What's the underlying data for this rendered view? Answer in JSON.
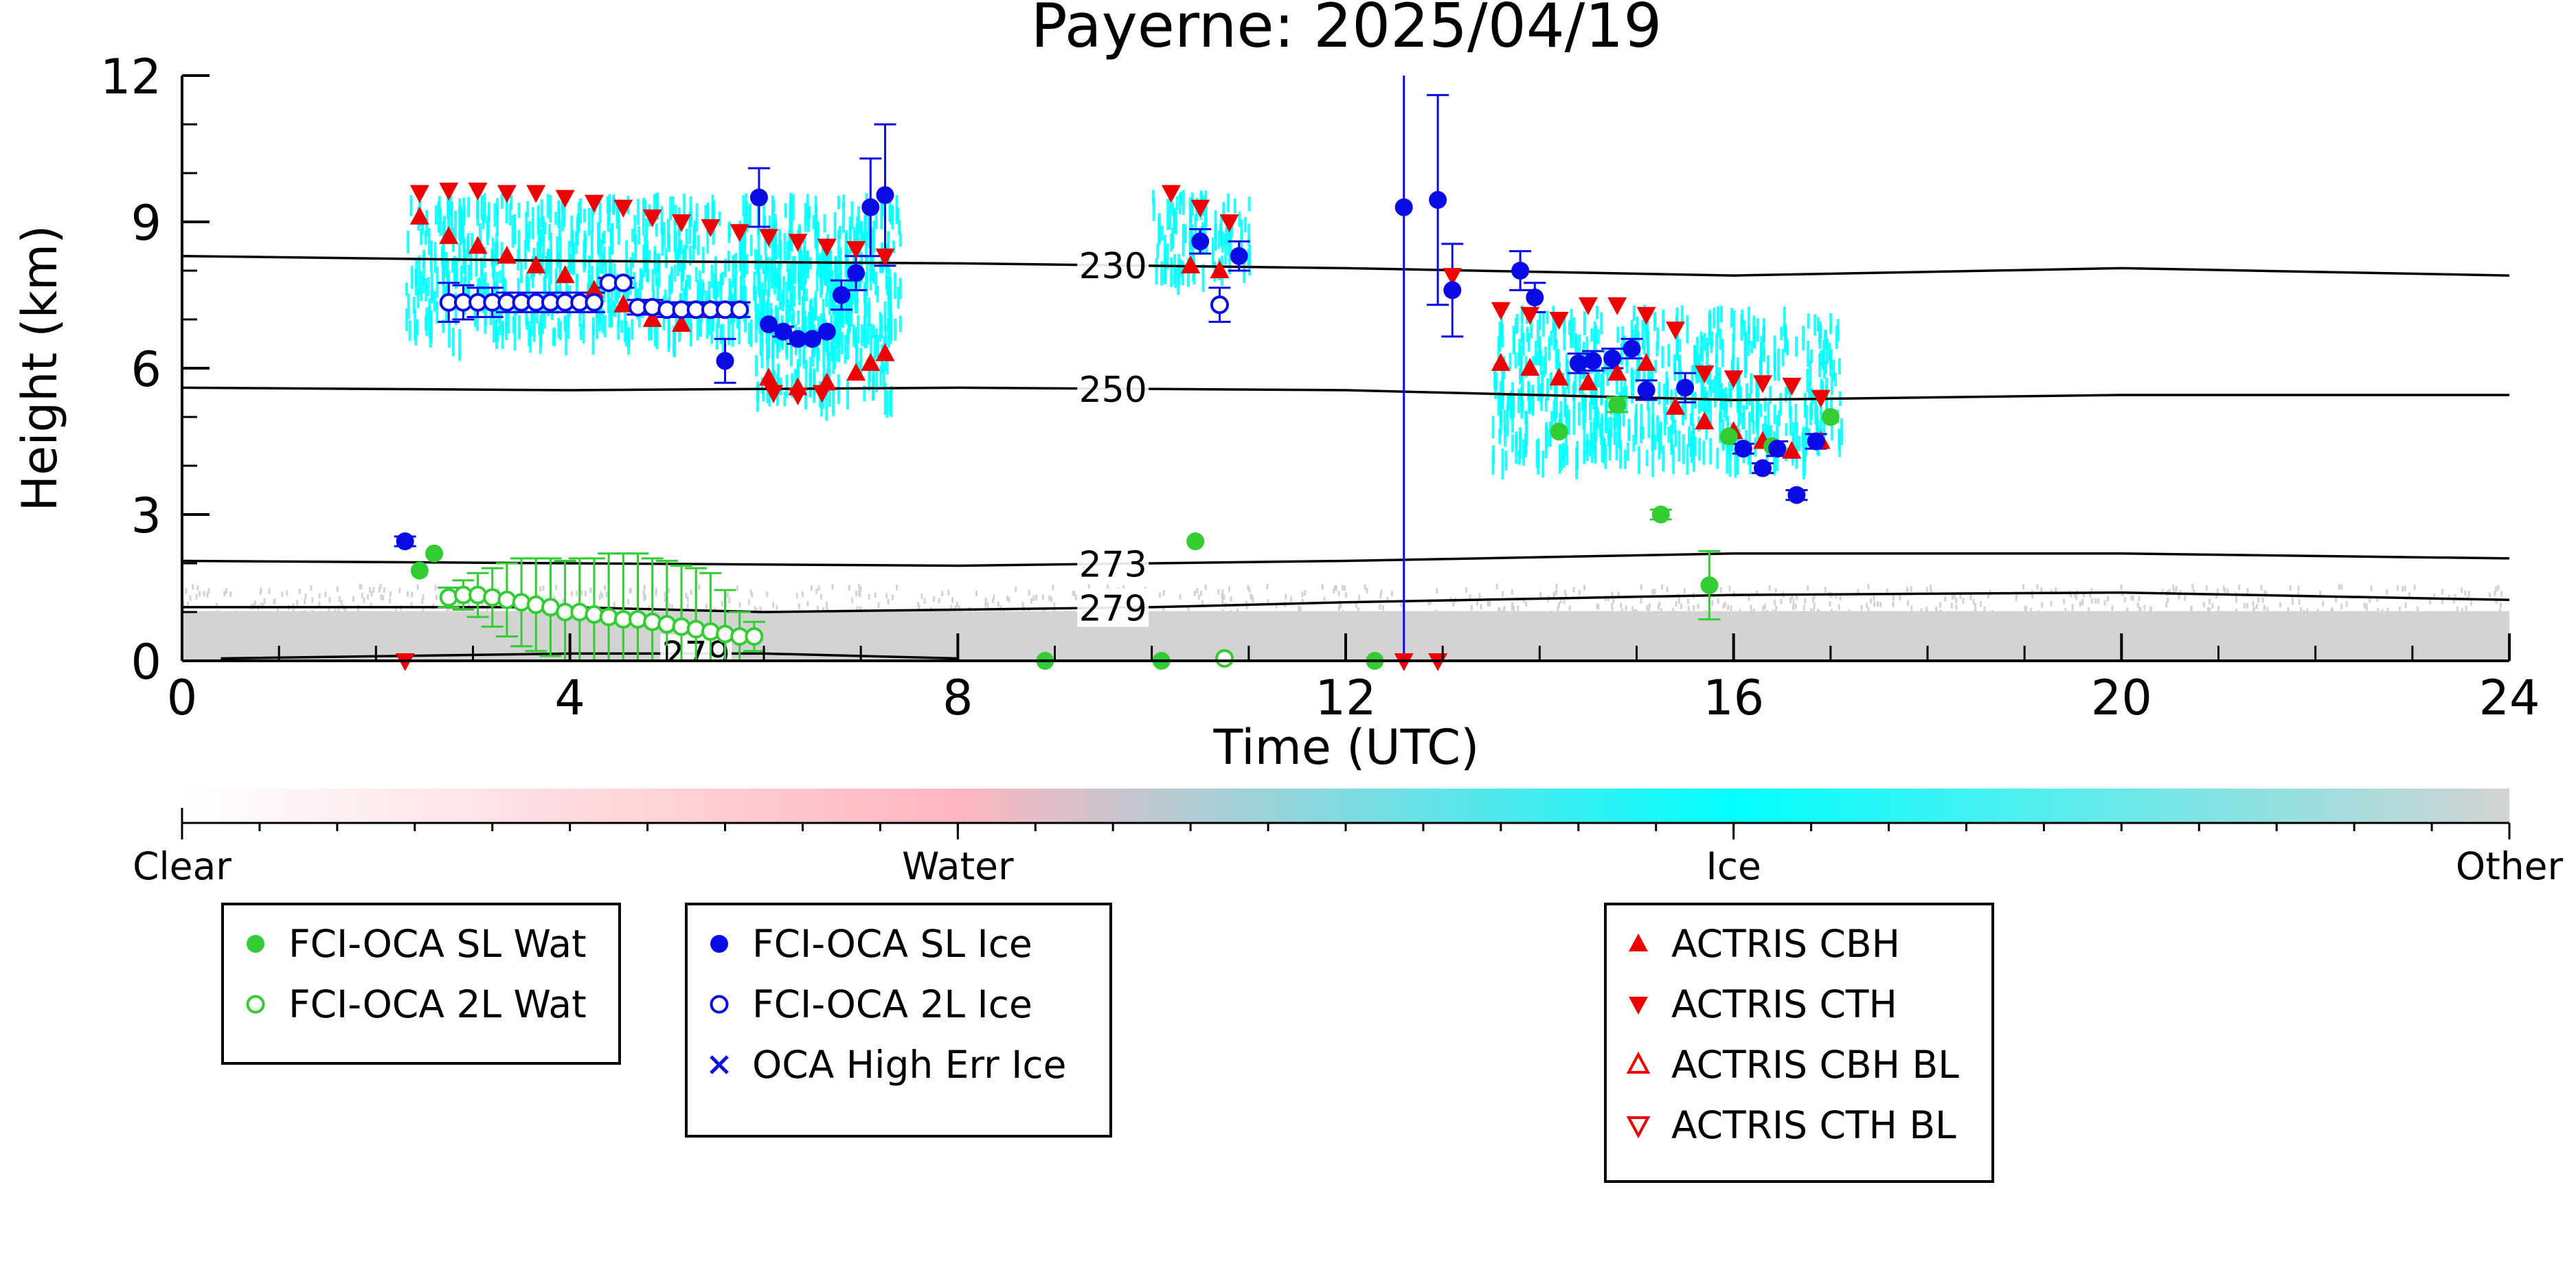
{
  "chart_data": {
    "type": "scatter",
    "title": "Payerne: 2025/04/19",
    "xlabel": "Time (UTC)",
    "ylabel": "Height (km)",
    "xlim": [
      0,
      24
    ],
    "ylim": [
      0,
      12
    ],
    "x_ticks": [
      "0",
      "4",
      "8",
      "12",
      "16",
      "20",
      "24"
    ],
    "y_ticks": [
      "0",
      "3",
      "6",
      "9",
      "12"
    ],
    "grid": false,
    "colorbar": {
      "labels": [
        "Clear",
        "Water",
        "Ice",
        "Other"
      ],
      "colors": [
        "#ffffff",
        "#ffb6c1",
        "#00ffff",
        "#d3d3d3"
      ]
    },
    "isotherms": [
      {
        "label": "230",
        "label_x": 9.6,
        "points": [
          [
            0,
            8.3
          ],
          [
            4,
            8.2
          ],
          [
            8,
            8.15
          ],
          [
            12,
            8.05
          ],
          [
            16,
            7.9
          ],
          [
            20,
            8.05
          ],
          [
            24,
            7.9
          ]
        ]
      },
      {
        "label": "250",
        "label_x": 9.6,
        "points": [
          [
            0,
            5.6
          ],
          [
            4,
            5.55
          ],
          [
            8,
            5.6
          ],
          [
            12,
            5.55
          ],
          [
            16,
            5.35
          ],
          [
            20,
            5.45
          ],
          [
            24,
            5.45
          ]
        ]
      },
      {
        "label": "273",
        "label_x": 9.6,
        "points": [
          [
            0,
            2.05
          ],
          [
            4,
            2.0
          ],
          [
            8,
            1.95
          ],
          [
            12,
            2.05
          ],
          [
            16,
            2.2
          ],
          [
            20,
            2.2
          ],
          [
            24,
            2.1
          ]
        ]
      },
      {
        "label": "279",
        "label_x": 9.6,
        "points": [
          [
            0,
            1.1
          ],
          [
            4,
            1.1
          ],
          [
            6,
            1.0
          ],
          [
            8,
            1.05
          ],
          [
            10,
            1.1
          ],
          [
            12,
            1.2
          ],
          [
            16,
            1.35
          ],
          [
            20,
            1.4
          ],
          [
            24,
            1.25
          ]
        ]
      },
      {
        "label": "279",
        "label_x": 5.3,
        "points": [
          [
            0.4,
            0.05
          ],
          [
            4,
            0.15
          ],
          [
            6,
            0.15
          ],
          [
            8,
            0.05
          ]
        ]
      }
    ],
    "series": [
      {
        "name": "FCI-OCA SL Wat",
        "marker": "circle-filled",
        "color": "#33cc33",
        "points": [
          [
            2.45,
            1.85,
            0
          ],
          [
            2.6,
            2.2,
            0
          ],
          [
            10.45,
            2.45,
            0
          ],
          [
            8.9,
            0.0,
            0
          ],
          [
            10.1,
            0.0,
            0
          ],
          [
            12.3,
            0.0,
            0
          ],
          [
            14.2,
            4.7,
            0
          ],
          [
            14.8,
            5.25,
            0.15
          ],
          [
            15.25,
            3.0,
            0.1
          ],
          [
            15.75,
            1.55,
            0.7
          ],
          [
            15.95,
            4.6,
            0
          ],
          [
            16.4,
            4.4,
            0
          ],
          [
            17.0,
            5.0,
            0
          ]
        ]
      },
      {
        "name": "FCI-OCA 2L Wat",
        "marker": "circle-open",
        "color": "#33cc33",
        "points": [
          [
            2.75,
            1.3,
            0.2
          ],
          [
            2.9,
            1.35,
            0.3
          ],
          [
            3.05,
            1.35,
            0.45
          ],
          [
            3.2,
            1.3,
            0.6
          ],
          [
            3.35,
            1.25,
            0.75
          ],
          [
            3.5,
            1.2,
            0.9
          ],
          [
            3.65,
            1.15,
            0.95
          ],
          [
            3.8,
            1.1,
            1.0
          ],
          [
            3.95,
            1.0,
            1.05
          ],
          [
            4.1,
            1.0,
            1.1
          ],
          [
            4.25,
            0.95,
            1.15
          ],
          [
            4.4,
            0.9,
            1.3
          ],
          [
            4.55,
            0.85,
            1.35
          ],
          [
            4.7,
            0.85,
            1.35
          ],
          [
            4.85,
            0.8,
            1.3
          ],
          [
            5.0,
            0.75,
            1.3
          ],
          [
            5.15,
            0.7,
            1.25
          ],
          [
            5.3,
            0.65,
            1.25
          ],
          [
            5.45,
            0.6,
            1.2
          ],
          [
            5.6,
            0.55,
            0.9
          ],
          [
            5.75,
            0.5,
            0.5
          ],
          [
            5.9,
            0.5,
            0.3
          ],
          [
            10.75,
            0.05,
            0
          ]
        ]
      },
      {
        "name": "FCI-OCA SL Ice",
        "marker": "circle-filled",
        "color": "#0a0ae6",
        "points": [
          [
            2.3,
            2.45,
            0.1
          ],
          [
            5.6,
            6.15,
            0.45
          ],
          [
            5.95,
            9.5,
            0.6
          ],
          [
            6.05,
            6.9,
            0
          ],
          [
            6.2,
            6.75,
            0.1
          ],
          [
            6.35,
            6.6,
            0.1
          ],
          [
            6.5,
            6.6,
            0
          ],
          [
            6.65,
            6.75,
            0
          ],
          [
            6.8,
            7.5,
            0.3
          ],
          [
            6.95,
            7.95,
            0.35
          ],
          [
            7.1,
            9.3,
            1.0
          ],
          [
            7.25,
            9.55,
            1.45
          ],
          [
            10.5,
            8.6,
            0.25
          ],
          [
            10.9,
            8.3,
            0.3
          ],
          [
            12.6,
            9.3,
            9.3
          ],
          [
            12.95,
            9.45,
            2.15
          ],
          [
            13.1,
            7.6,
            0.95
          ],
          [
            13.8,
            8.0,
            0.4
          ],
          [
            13.95,
            7.45,
            0.3
          ],
          [
            14.4,
            6.1,
            0.2
          ],
          [
            14.55,
            6.15,
            0.2
          ],
          [
            14.75,
            6.2,
            0.2
          ],
          [
            14.95,
            6.4,
            0.2
          ],
          [
            15.1,
            5.55,
            0.2
          ],
          [
            15.5,
            5.6,
            0.3
          ],
          [
            16.1,
            4.35,
            0.1
          ],
          [
            16.3,
            3.95,
            0.1
          ],
          [
            16.45,
            4.35,
            0.15
          ],
          [
            16.65,
            3.4,
            0.1
          ],
          [
            16.85,
            4.5,
            0.15
          ]
        ]
      },
      {
        "name": "FCI-OCA 2L Ice",
        "marker": "circle-open",
        "color": "#0a0ae6",
        "points": [
          [
            2.75,
            7.35,
            0.4
          ],
          [
            2.9,
            7.35,
            0.35
          ],
          [
            3.05,
            7.35,
            0.3
          ],
          [
            3.2,
            7.35,
            0.3
          ],
          [
            3.35,
            7.35,
            0.2
          ],
          [
            3.5,
            7.35,
            0.2
          ],
          [
            3.65,
            7.35,
            0.2
          ],
          [
            3.8,
            7.35,
            0.2
          ],
          [
            3.95,
            7.35,
            0.2
          ],
          [
            4.1,
            7.35,
            0.2
          ],
          [
            4.25,
            7.35,
            0.2
          ],
          [
            4.4,
            7.75,
            0.1
          ],
          [
            4.55,
            7.75,
            0.1
          ],
          [
            4.7,
            7.25,
            0.15
          ],
          [
            4.85,
            7.25,
            0.15
          ],
          [
            5.0,
            7.2,
            0.15
          ],
          [
            5.15,
            7.2,
            0.15
          ],
          [
            5.3,
            7.2,
            0.15
          ],
          [
            5.45,
            7.2,
            0.15
          ],
          [
            5.6,
            7.2,
            0.15
          ],
          [
            5.75,
            7.2,
            0.15
          ],
          [
            10.7,
            7.3,
            0.35
          ]
        ]
      },
      {
        "name": "OCA High Err Ice",
        "marker": "x",
        "color": "#0a0ae6",
        "points": []
      },
      {
        "name": "ACTRIS CBH",
        "marker": "triangle-up-filled",
        "color": "#ee0000",
        "points": [
          [
            2.45,
            9.1
          ],
          [
            2.75,
            8.7
          ],
          [
            3.05,
            8.5
          ],
          [
            3.35,
            8.3
          ],
          [
            3.65,
            8.1
          ],
          [
            3.95,
            7.9
          ],
          [
            4.25,
            7.6
          ],
          [
            4.55,
            7.3
          ],
          [
            4.85,
            7.0
          ],
          [
            5.15,
            6.9
          ],
          [
            5.45,
            7.2
          ],
          [
            6.05,
            5.8
          ],
          [
            6.35,
            5.6
          ],
          [
            6.65,
            5.7
          ],
          [
            6.95,
            5.9
          ],
          [
            7.1,
            6.1
          ],
          [
            7.25,
            6.3
          ],
          [
            10.4,
            8.1
          ],
          [
            10.7,
            8.0
          ],
          [
            13.6,
            6.1
          ],
          [
            13.9,
            6.0
          ],
          [
            14.2,
            5.8
          ],
          [
            14.5,
            5.7
          ],
          [
            14.8,
            5.9
          ],
          [
            15.1,
            6.1
          ],
          [
            15.4,
            5.2
          ],
          [
            15.7,
            4.9
          ],
          [
            16.0,
            4.7
          ],
          [
            16.3,
            4.5
          ],
          [
            16.6,
            4.3
          ],
          [
            16.9,
            4.5
          ]
        ]
      },
      {
        "name": "ACTRIS CTH",
        "marker": "triangle-down-filled",
        "color": "#ee0000",
        "points": [
          [
            2.45,
            9.6
          ],
          [
            2.75,
            9.65
          ],
          [
            3.05,
            9.65
          ],
          [
            3.35,
            9.6
          ],
          [
            3.65,
            9.6
          ],
          [
            3.95,
            9.5
          ],
          [
            4.25,
            9.4
          ],
          [
            4.55,
            9.3
          ],
          [
            4.85,
            9.1
          ],
          [
            5.15,
            9.0
          ],
          [
            5.45,
            8.9
          ],
          [
            5.75,
            8.8
          ],
          [
            6.05,
            8.7
          ],
          [
            6.35,
            8.6
          ],
          [
            6.65,
            8.5
          ],
          [
            6.95,
            8.45
          ],
          [
            7.25,
            8.3
          ],
          [
            6.1,
            5.5
          ],
          [
            6.35,
            5.45
          ],
          [
            6.6,
            5.5
          ],
          [
            10.2,
            9.6
          ],
          [
            10.5,
            9.3
          ],
          [
            10.8,
            9.0
          ],
          [
            12.6,
            0.0
          ],
          [
            12.95,
            0.0
          ],
          [
            13.1,
            7.9
          ],
          [
            13.6,
            7.2
          ],
          [
            13.9,
            7.1
          ],
          [
            14.2,
            7.0
          ],
          [
            14.5,
            7.3
          ],
          [
            14.8,
            7.3
          ],
          [
            15.1,
            7.1
          ],
          [
            15.4,
            6.8
          ],
          [
            15.7,
            5.9
          ],
          [
            16.0,
            5.8
          ],
          [
            16.3,
            5.7
          ],
          [
            16.6,
            5.65
          ],
          [
            16.9,
            5.4
          ],
          [
            2.3,
            0.0
          ]
        ]
      },
      {
        "name": "ACTRIS CBH BL",
        "marker": "triangle-up-open",
        "color": "#ee0000",
        "points": []
      },
      {
        "name": "ACTRIS CTH BL",
        "marker": "triangle-down-open",
        "color": "#ee0000",
        "points": []
      }
    ],
    "legend_groups": [
      [
        "FCI-OCA SL Wat",
        "FCI-OCA 2L Wat"
      ],
      [
        "FCI-OCA SL Ice",
        "FCI-OCA 2L Ice",
        "OCA High Err Ice"
      ],
      [
        "ACTRIS CBH",
        "ACTRIS CTH",
        "ACTRIS CBH BL",
        "ACTRIS CTH BL"
      ]
    ],
    "background_regions": [
      {
        "class": "Other",
        "x": [
          0,
          24
        ],
        "y": [
          0,
          1.3
        ],
        "color": "#d3d3d3"
      },
      {
        "class": "Ice",
        "x": [
          2.3,
          7.4
        ],
        "y": [
          6.8,
          9.6
        ],
        "color": "#00ffff"
      },
      {
        "class": "Ice",
        "x": [
          5.9,
          7.3
        ],
        "y": [
          5.5,
          8.5
        ],
        "color": "#00ffff"
      },
      {
        "class": "Ice",
        "x": [
          10.0,
          11.0
        ],
        "y": [
          8.1,
          9.7
        ],
        "color": "#00ffff"
      },
      {
        "class": "Ice",
        "x": [
          13.5,
          17.1
        ],
        "y": [
          4.3,
          7.3
        ],
        "color": "#00ffff"
      }
    ]
  }
}
